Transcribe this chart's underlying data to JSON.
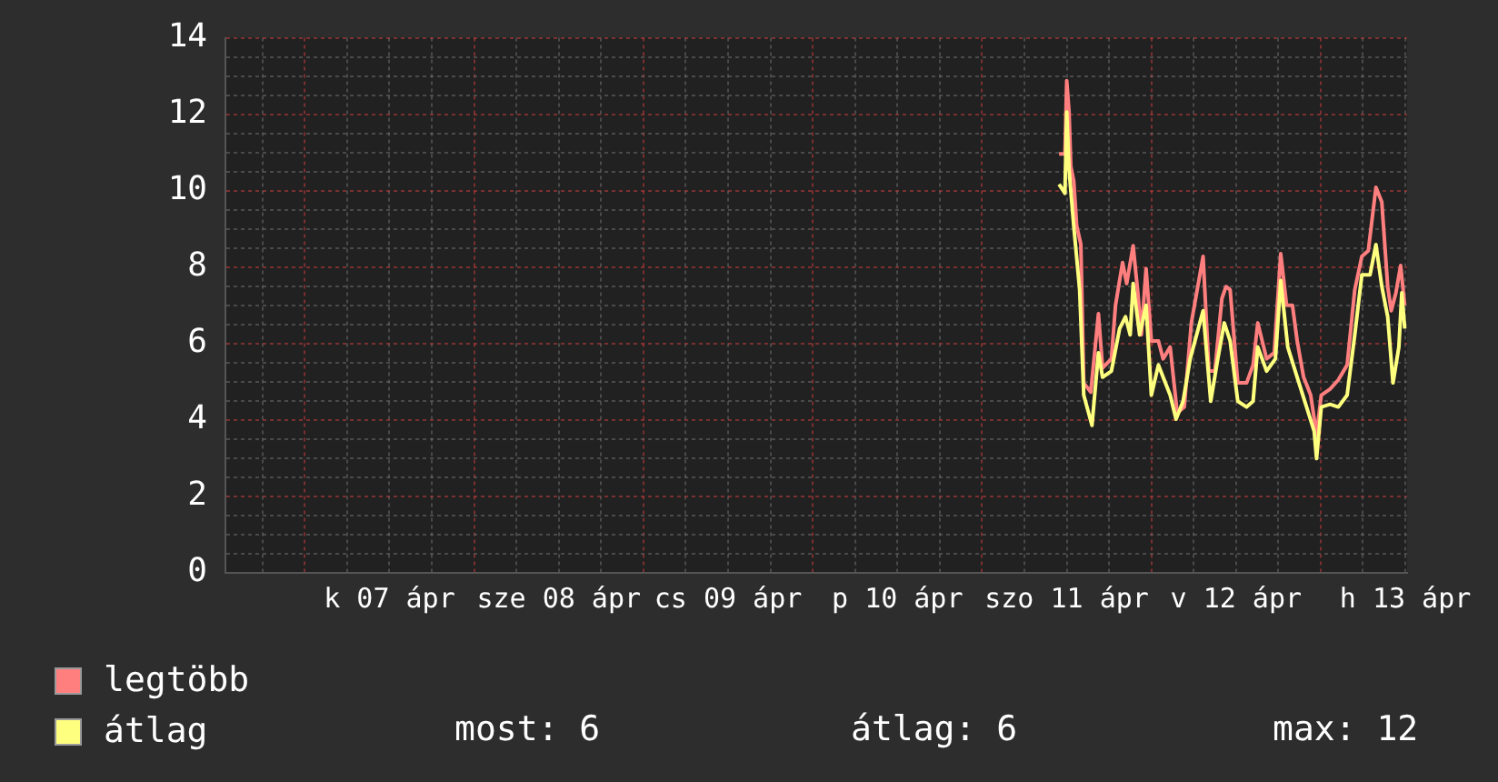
{
  "chart_data": {
    "type": "line",
    "xlim": [
      "--04-06T12:45",
      "--04-13T12:15"
    ],
    "xticks": [
      {
        "value": "--04-06T18:00",
        "label": null
      },
      {
        "value": "--04-07T00:00",
        "label": null
      },
      {
        "value": "--04-07T06:00",
        "label": null
      },
      {
        "value": "--04-07T12:00",
        "label": "k 07 ápr"
      },
      {
        "value": "--04-07T18:00",
        "label": null
      },
      {
        "value": "--04-08T00:00",
        "label": null
      },
      {
        "value": "--04-08T06:00",
        "label": null
      },
      {
        "value": "--04-08T12:00",
        "label": "sze 08 ápr"
      },
      {
        "value": "--04-08T18:00",
        "label": null
      },
      {
        "value": "--04-09T00:00",
        "label": null
      },
      {
        "value": "--04-09T06:00",
        "label": null
      },
      {
        "value": "--04-09T12:00",
        "label": "cs 09 ápr"
      },
      {
        "value": "--04-09T18:00",
        "label": null
      },
      {
        "value": "--04-10T00:00",
        "label": null
      },
      {
        "value": "--04-10T06:00",
        "label": null
      },
      {
        "value": "--04-10T12:00",
        "label": "p 10 ápr"
      },
      {
        "value": "--04-10T18:00",
        "label": null
      },
      {
        "value": "--04-11T00:00",
        "label": null
      },
      {
        "value": "--04-11T06:00",
        "label": null
      },
      {
        "value": "--04-11T12:00",
        "label": "szo 11 ápr"
      },
      {
        "value": "--04-11T18:00",
        "label": null
      },
      {
        "value": "--04-12T00:00",
        "label": null
      },
      {
        "value": "--04-12T06:00",
        "label": null
      },
      {
        "value": "--04-12T12:00",
        "label": "v 12 ápr"
      },
      {
        "value": "--04-12T18:00",
        "label": null
      },
      {
        "value": "--04-13T00:00",
        "label": null
      },
      {
        "value": "--04-13T06:00",
        "label": null
      },
      {
        "value": "--04-13T12:00",
        "label": "h 13 ápr"
      }
    ],
    "ylim": [
      0,
      14
    ],
    "yticks": [
      0,
      {
        "value": 0.5,
        "label": null
      },
      {
        "value": 1,
        "label": null
      },
      {
        "value": 1.5,
        "label": null
      },
      2,
      {
        "value": 2.5,
        "label": null
      },
      {
        "value": 3,
        "label": null
      },
      {
        "value": 3.5,
        "label": null
      },
      4,
      {
        "value": 4.5,
        "label": null
      },
      {
        "value": 5,
        "label": null
      },
      {
        "value": 5.5,
        "label": null
      },
      6,
      {
        "value": 6.5,
        "label": null
      },
      {
        "value": 7,
        "label": null
      },
      {
        "value": 7.5,
        "label": null
      },
      8,
      {
        "value": 8.5,
        "label": null
      },
      {
        "value": 9,
        "label": null
      },
      {
        "value": 9.5,
        "label": null
      },
      10,
      {
        "value": 10.5,
        "label": null
      },
      {
        "value": 11,
        "label": null
      },
      {
        "value": 11.5,
        "label": null
      },
      12,
      {
        "value": 12.5,
        "label": null
      },
      {
        "value": 13,
        "label": null
      },
      {
        "value": 13.5,
        "label": null
      },
      14
    ],
    "grid": true,
    "legend": "bottom left",
    "series": [
      {
        "name": "legtöbb",
        "color": "#ff7f7f",
        "x": [
          "--04-11T10:55",
          "--04-11T11:45",
          "--04-11T12:00",
          "--04-11T12:20",
          "--04-11T12:35",
          "--04-11T13:00",
          "--04-11T13:25",
          "--04-11T14:00",
          "--04-11T14:25",
          "--04-11T15:25",
          "--04-11T16:30",
          "--04-11T17:05",
          "--04-11T18:20",
          "--04-11T18:55",
          "--04-11T19:55",
          "--04-11T20:30",
          "--04-11T21:25",
          "--04-11T22:05",
          "--04-11T22:35",
          "--04-11T23:15",
          "--04-12T00:00",
          "--04-12T01:00",
          "--04-12T01:40",
          "--04-12T02:40",
          "--04-12T03:40",
          "--04-12T04:40",
          "--04-12T05:40",
          "--04-12T07:20",
          "--04-12T08:10",
          "--04-12T09:00",
          "--04-12T10:00",
          "--04-12T10:35",
          "--04-12T11:10",
          "--04-12T12:15",
          "--04-12T13:30",
          "--04-12T14:25",
          "--04-12T15:05",
          "--04-12T16:20",
          "--04-12T17:25",
          "--04-12T18:20",
          "--04-12T19:10",
          "--04-12T20:00",
          "--04-12T20:40",
          "--04-12T21:35",
          "--04-12T22:35",
          "--04-12T23:25",
          "--04-13T00:05",
          "--04-13T01:20",
          "--04-13T02:30",
          "--04-13T03:45",
          "--04-13T04:50",
          "--04-13T05:50",
          "--04-13T06:45",
          "--04-13T07:50",
          "--04-13T08:40",
          "--04-13T09:30",
          "--04-13T10:00",
          "--04-13T10:40",
          "--04-13T11:20",
          "--04-13T11:55"
        ],
        "values": [
          10.96,
          10.96,
          12.88,
          12.06,
          10.64,
          10.25,
          9.08,
          8.6,
          4.97,
          4.73,
          6.78,
          5.36,
          5.6,
          7.0,
          8.12,
          7.57,
          8.56,
          7.33,
          6.23,
          7.96,
          6.07,
          6.07,
          5.6,
          5.91,
          4.18,
          4.34,
          6.54,
          8.28,
          5.28,
          5.28,
          7.18,
          7.49,
          7.41,
          4.97,
          4.97,
          5.44,
          6.54,
          5.6,
          5.76,
          8.35,
          7.0,
          7.0,
          6.07,
          5.12,
          4.65,
          3.62,
          4.65,
          4.81,
          5.05,
          5.44,
          7.41,
          8.28,
          8.43,
          10.09,
          9.7,
          7.49,
          6.86,
          7.33,
          8.04,
          7.0
        ]
      },
      {
        "name": "átlag",
        "color": "#ffff7f",
        "x": [
          "--04-11T10:55",
          "--04-11T11:45",
          "--04-11T12:00",
          "--04-11T12:20",
          "--04-11T13:00",
          "--04-11T13:50",
          "--04-11T14:25",
          "--04-11T15:35",
          "--04-11T16:30",
          "--04-11T17:05",
          "--04-11T18:20",
          "--04-11T19:30",
          "--04-11T20:20",
          "--04-11T21:00",
          "--04-11T21:25",
          "--04-11T22:20",
          "--04-11T23:15",
          "--04-12T00:00",
          "--04-12T01:00",
          "--04-12T01:40",
          "--04-12T02:40",
          "--04-12T03:30",
          "--04-12T04:30",
          "--04-12T05:30",
          "--04-12T07:20",
          "--04-12T08:25",
          "--04-12T09:25",
          "--04-12T10:20",
          "--04-12T11:10",
          "--04-12T12:15",
          "--04-12T13:30",
          "--04-12T14:25",
          "--04-12T15:05",
          "--04-12T16:20",
          "--04-12T17:35",
          "--04-12T18:20",
          "--04-12T19:20",
          "--04-12T20:40",
          "--04-12T22:00",
          "--04-12T23:05",
          "--04-12T23:25",
          "--04-13T00:05",
          "--04-13T01:20",
          "--04-13T02:30",
          "--04-13T03:45",
          "--04-13T04:50",
          "--04-13T05:50",
          "--04-13T07:00",
          "--04-13T07:50",
          "--04-13T08:40",
          "--04-13T09:30",
          "--04-13T10:15",
          "--04-13T11:05",
          "--04-13T11:30",
          "--04-13T11:55"
        ],
        "values": [
          10.17,
          9.93,
          12.06,
          10.56,
          9.07,
          7.41,
          4.65,
          3.86,
          5.76,
          5.12,
          5.28,
          6.39,
          6.7,
          6.23,
          7.57,
          6.23,
          7.0,
          4.65,
          5.44,
          5.12,
          4.65,
          4.02,
          4.49,
          5.6,
          6.86,
          4.49,
          5.6,
          6.54,
          6.07,
          4.49,
          4.34,
          4.49,
          5.91,
          5.28,
          5.6,
          7.65,
          5.91,
          5.12,
          4.34,
          3.7,
          2.99,
          4.34,
          4.41,
          4.34,
          4.65,
          6.23,
          7.8,
          7.8,
          8.59,
          7.49,
          6.7,
          4.97,
          5.91,
          7.33,
          6.39
        ]
      }
    ],
    "annotations": [
      "most: 6",
      "átlag: 6",
      "max: 12"
    ]
  }
}
